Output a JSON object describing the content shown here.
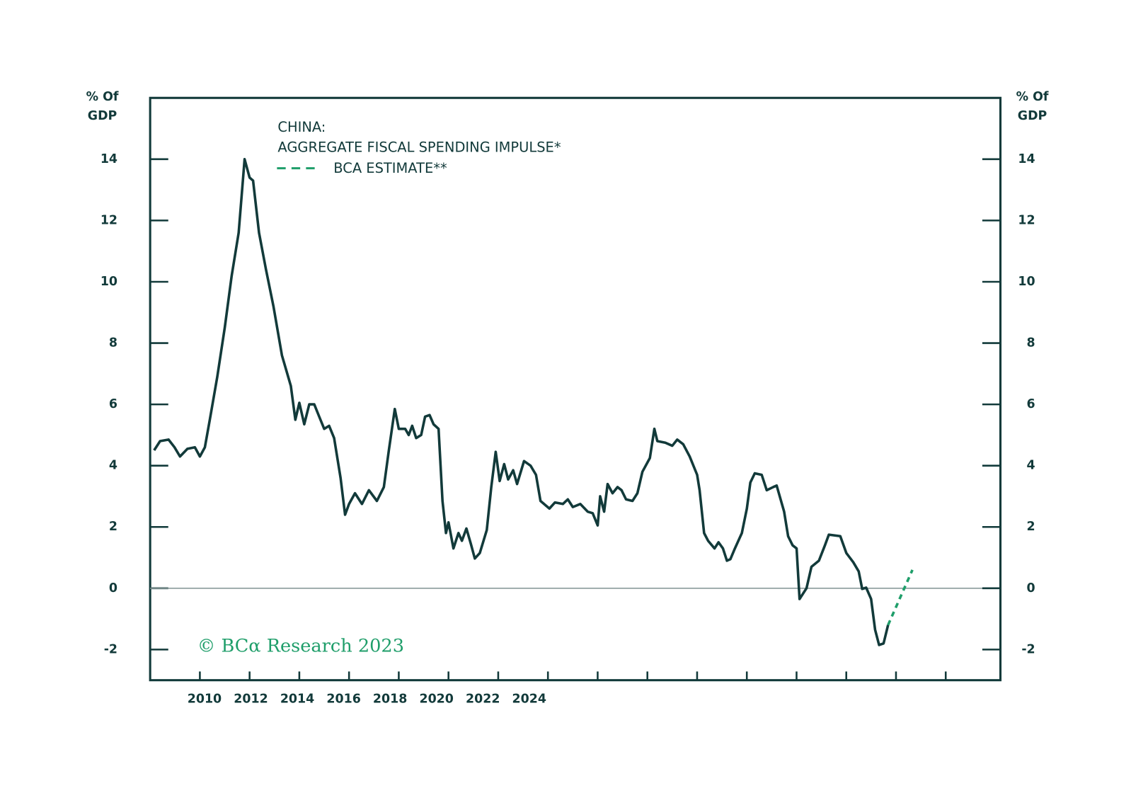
{
  "chart_data": {
    "type": "line",
    "title": "CHINA:",
    "y_label": [
      "% Of",
      "GDP"
    ],
    "y2_label": [
      "% Of",
      "GDP"
    ],
    "watermark": "© BCα Research 2023",
    "xlim": [
      2008,
      2025.1
    ],
    "xticks": [
      2009,
      2010,
      2011,
      2012,
      2013,
      2014,
      2015,
      2016,
      2017,
      2018,
      2019,
      2020,
      2021,
      2022,
      2023,
      2024
    ],
    "xtick_labels": [
      "2010",
      "2012",
      "2014",
      "2016",
      "2018",
      "2020",
      "2022",
      "2024"
    ],
    "ylim": [
      -3,
      16
    ],
    "yticks": [
      -2,
      0,
      2,
      4,
      6,
      8,
      10,
      12,
      14
    ],
    "y2lim": [
      -3,
      16
    ],
    "y2ticks": [
      -2,
      0,
      2,
      4,
      6,
      8,
      10,
      12,
      14
    ],
    "series": [
      {
        "name": "AGGREGATE FISCAL SPENDING IMPULSE*",
        "color": "#123a3a",
        "dashed": false,
        "x": [
          2008.08,
          2008.2,
          2008.37,
          2008.49,
          2008.6,
          2008.75,
          2008.9,
          2009.0,
          2009.1,
          2009.2,
          2009.35,
          2009.5,
          2009.64,
          2009.78,
          2009.9,
          2010.0,
          2010.07,
          2010.19,
          2010.33,
          2010.48,
          2010.65,
          2010.83,
          2010.92,
          2011.0,
          2011.1,
          2011.2,
          2011.3,
          2011.4,
          2011.5,
          2011.6,
          2011.7,
          2011.83,
          2011.92,
          2012.0,
          2012.12,
          2012.26,
          2012.4,
          2012.56,
          2012.7,
          2012.8,
          2012.92,
          2013.0,
          2013.13,
          2013.2,
          2013.27,
          2013.35,
          2013.45,
          2013.53,
          2013.62,
          2013.7,
          2013.8,
          2013.88,
          2013.95,
          2014.0,
          2014.1,
          2014.2,
          2014.27,
          2014.36,
          2014.45,
          2014.53,
          2014.63,
          2014.77,
          2014.86,
          2014.95,
          2015.03,
          2015.12,
          2015.2,
          2015.3,
          2015.38,
          2015.52,
          2015.65,
          2015.76,
          2015.85,
          2016.03,
          2016.14,
          2016.3,
          2016.4,
          2016.5,
          2016.65,
          2016.8,
          2016.9,
          2017.0,
          2017.05,
          2017.13,
          2017.2,
          2017.3,
          2017.4,
          2017.48,
          2017.57,
          2017.7,
          2017.8,
          2017.9,
          2018.05,
          2018.14,
          2018.2,
          2018.36,
          2018.5,
          2018.6,
          2018.72,
          2018.85,
          2019.0,
          2019.05,
          2019.14,
          2019.22,
          2019.35,
          2019.43,
          2019.52,
          2019.6,
          2019.67,
          2019.76,
          2019.9,
          2020.0,
          2020.07,
          2020.16,
          2020.3,
          2020.4,
          2020.53,
          2020.6,
          2020.75,
          2020.83,
          2020.92,
          2021.0,
          2021.06,
          2021.2,
          2021.3,
          2021.45,
          2021.57,
          2021.65,
          2021.88,
          2022.0,
          2022.14,
          2022.25,
          2022.32,
          2022.4,
          2022.5,
          2022.58,
          2022.66,
          2022.75,
          2022.84
        ],
        "values": [
          4.5,
          4.8,
          4.85,
          4.6,
          4.3,
          4.55,
          4.6,
          4.3,
          4.6,
          5.5,
          6.9,
          8.5,
          10.2,
          11.6,
          14.0,
          13.4,
          13.3,
          11.6,
          10.4,
          9.2,
          7.6,
          6.6,
          5.5,
          6.05,
          5.35,
          6.0,
          6.0,
          5.6,
          5.2,
          5.3,
          4.9,
          3.6,
          2.4,
          2.75,
          3.1,
          2.75,
          3.2,
          2.85,
          3.3,
          4.5,
          5.85,
          5.2,
          5.2,
          5.0,
          5.3,
          4.9,
          5.0,
          5.6,
          5.65,
          5.35,
          5.2,
          2.85,
          1.8,
          2.15,
          1.3,
          1.8,
          1.55,
          1.95,
          1.45,
          0.97,
          1.15,
          1.9,
          3.3,
          4.45,
          3.5,
          4.05,
          3.55,
          3.85,
          3.4,
          4.15,
          4.0,
          3.7,
          2.85,
          2.6,
          2.8,
          2.75,
          2.9,
          2.65,
          2.75,
          2.5,
          2.45,
          2.05,
          3.0,
          2.5,
          3.4,
          3.1,
          3.3,
          3.2,
          2.9,
          2.85,
          3.1,
          3.8,
          4.25,
          5.2,
          4.8,
          4.75,
          4.65,
          4.85,
          4.7,
          4.3,
          3.7,
          3.2,
          1.8,
          1.55,
          1.3,
          1.5,
          1.3,
          0.9,
          0.95,
          1.3,
          1.8,
          2.6,
          3.45,
          3.75,
          3.7,
          3.2,
          3.3,
          3.35,
          2.5,
          1.7,
          1.4,
          1.3,
          -0.35,
          0,
          0.7,
          0.9,
          1.4,
          1.75,
          1.7,
          1.15,
          0.85,
          0.55,
          -0.02,
          0.02,
          -0.35,
          -1.35,
          -1.85,
          -1.8,
          -1.2
        ]
      },
      {
        "name": "BCA ESTIMATE**",
        "color": "#1f9e6a",
        "dashed": true,
        "x": [
          2022.84,
          2023.33
        ],
        "values": [
          -1.2,
          0.6
        ]
      }
    ]
  }
}
